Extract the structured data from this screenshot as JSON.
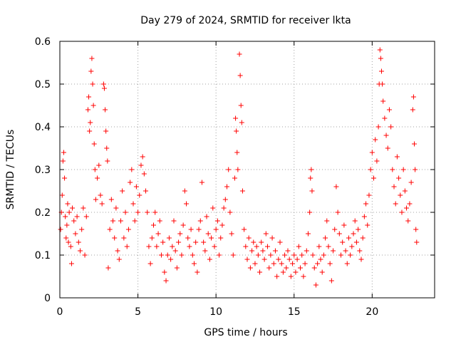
{
  "chart_data": {
    "type": "scatter",
    "title": "Day 279 of 2024, SRMTID for receiver lkta",
    "xlabel": "GPS time / hours",
    "ylabel": "SRMTID / TECUs",
    "xlim": [
      0,
      24
    ],
    "ylim": [
      0,
      0.6
    ],
    "xticks": [
      0,
      5,
      10,
      15,
      20
    ],
    "xtick_labels": [
      "0",
      "5",
      "10",
      "15",
      "20"
    ],
    "yticks": [
      0,
      0.1,
      0.2,
      0.3,
      0.4,
      0.5,
      0.6
    ],
    "ytick_labels": [
      "0",
      "0.1",
      "0.2",
      "0.3",
      "0.4",
      "0.5",
      "0.6"
    ],
    "grid": true,
    "marker": "+",
    "color": "#ff0000",
    "series": [
      {
        "name": "SRMTID",
        "points": [
          [
            0.05,
            0.16
          ],
          [
            0.1,
            0.2
          ],
          [
            0.15,
            0.24
          ],
          [
            0.2,
            0.32
          ],
          [
            0.25,
            0.34
          ],
          [
            0.3,
            0.28
          ],
          [
            0.35,
            0.19
          ],
          [
            0.4,
            0.14
          ],
          [
            0.45,
            0.17
          ],
          [
            0.5,
            0.22
          ],
          [
            0.55,
            0.13
          ],
          [
            0.6,
            0.2
          ],
          [
            0.7,
            0.12
          ],
          [
            0.75,
            0.08
          ],
          [
            0.8,
            0.21
          ],
          [
            0.9,
            0.18
          ],
          [
            1.0,
            0.15
          ],
          [
            1.1,
            0.19
          ],
          [
            1.2,
            0.13
          ],
          [
            1.3,
            0.11
          ],
          [
            1.4,
            0.16
          ],
          [
            1.5,
            0.21
          ],
          [
            1.6,
            0.1
          ],
          [
            1.7,
            0.19
          ],
          [
            1.8,
            0.44
          ],
          [
            1.85,
            0.47
          ],
          [
            1.9,
            0.39
          ],
          [
            1.95,
            0.41
          ],
          [
            2.0,
            0.53
          ],
          [
            2.05,
            0.56
          ],
          [
            2.1,
            0.5
          ],
          [
            2.15,
            0.45
          ],
          [
            2.2,
            0.36
          ],
          [
            2.25,
            0.3
          ],
          [
            2.3,
            0.23
          ],
          [
            2.4,
            0.28
          ],
          [
            2.5,
            0.31
          ],
          [
            2.6,
            0.24
          ],
          [
            2.7,
            0.22
          ],
          [
            2.8,
            0.5
          ],
          [
            2.85,
            0.49
          ],
          [
            2.9,
            0.44
          ],
          [
            2.95,
            0.39
          ],
          [
            3.0,
            0.35
          ],
          [
            3.05,
            0.32
          ],
          [
            3.1,
            0.07
          ],
          [
            3.2,
            0.16
          ],
          [
            3.3,
            0.23
          ],
          [
            3.4,
            0.18
          ],
          [
            3.5,
            0.14
          ],
          [
            3.6,
            0.21
          ],
          [
            3.7,
            0.11
          ],
          [
            3.8,
            0.09
          ],
          [
            3.9,
            0.18
          ],
          [
            4.0,
            0.25
          ],
          [
            4.1,
            0.14
          ],
          [
            4.2,
            0.2
          ],
          [
            4.3,
            0.12
          ],
          [
            4.4,
            0.16
          ],
          [
            4.5,
            0.27
          ],
          [
            4.6,
            0.3
          ],
          [
            4.7,
            0.22
          ],
          [
            4.8,
            0.18
          ],
          [
            4.9,
            0.26
          ],
          [
            5.0,
            0.2
          ],
          [
            5.1,
            0.24
          ],
          [
            5.2,
            0.31
          ],
          [
            5.3,
            0.33
          ],
          [
            5.4,
            0.29
          ],
          [
            5.5,
            0.25
          ],
          [
            5.6,
            0.2
          ],
          [
            5.7,
            0.12
          ],
          [
            5.8,
            0.08
          ],
          [
            5.9,
            0.14
          ],
          [
            6.0,
            0.17
          ],
          [
            6.1,
            0.2
          ],
          [
            6.2,
            0.12
          ],
          [
            6.3,
            0.15
          ],
          [
            6.4,
            0.18
          ],
          [
            6.5,
            0.1
          ],
          [
            6.6,
            0.13
          ],
          [
            6.7,
            0.06
          ],
          [
            6.8,
            0.04
          ],
          [
            6.9,
            0.1
          ],
          [
            7.0,
            0.14
          ],
          [
            7.1,
            0.09
          ],
          [
            7.2,
            0.12
          ],
          [
            7.3,
            0.18
          ],
          [
            7.4,
            0.11
          ],
          [
            7.5,
            0.07
          ],
          [
            7.6,
            0.13
          ],
          [
            7.7,
            0.15
          ],
          [
            7.8,
            0.1
          ],
          [
            7.9,
            0.17
          ],
          [
            8.0,
            0.25
          ],
          [
            8.1,
            0.22
          ],
          [
            8.2,
            0.14
          ],
          [
            8.3,
            0.12
          ],
          [
            8.4,
            0.16
          ],
          [
            8.5,
            0.1
          ],
          [
            8.6,
            0.08
          ],
          [
            8.7,
            0.13
          ],
          [
            8.8,
            0.06
          ],
          [
            8.9,
            0.16
          ],
          [
            9.0,
            0.18
          ],
          [
            9.1,
            0.27
          ],
          [
            9.2,
            0.13
          ],
          [
            9.3,
            0.11
          ],
          [
            9.4,
            0.19
          ],
          [
            9.5,
            0.15
          ],
          [
            9.6,
            0.09
          ],
          [
            9.7,
            0.14
          ],
          [
            9.8,
            0.21
          ],
          [
            9.9,
            0.12
          ],
          [
            10.0,
            0.16
          ],
          [
            10.1,
            0.18
          ],
          [
            10.2,
            0.1
          ],
          [
            10.3,
            0.14
          ],
          [
            10.4,
            0.17
          ],
          [
            10.5,
            0.21
          ],
          [
            10.6,
            0.23
          ],
          [
            10.7,
            0.26
          ],
          [
            10.8,
            0.3
          ],
          [
            10.9,
            0.2
          ],
          [
            11.0,
            0.15
          ],
          [
            11.1,
            0.1
          ],
          [
            11.2,
            0.28
          ],
          [
            11.25,
            0.42
          ],
          [
            11.3,
            0.39
          ],
          [
            11.35,
            0.34
          ],
          [
            11.4,
            0.3
          ],
          [
            11.5,
            0.57
          ],
          [
            11.55,
            0.52
          ],
          [
            11.6,
            0.45
          ],
          [
            11.65,
            0.41
          ],
          [
            11.7,
            0.25
          ],
          [
            11.8,
            0.16
          ],
          [
            11.9,
            0.12
          ],
          [
            12.0,
            0.09
          ],
          [
            12.1,
            0.14
          ],
          [
            12.2,
            0.07
          ],
          [
            12.3,
            0.11
          ],
          [
            12.4,
            0.13
          ],
          [
            12.5,
            0.08
          ],
          [
            12.6,
            0.12
          ],
          [
            12.7,
            0.1
          ],
          [
            12.8,
            0.06
          ],
          [
            12.9,
            0.13
          ],
          [
            13.0,
            0.11
          ],
          [
            13.1,
            0.09
          ],
          [
            13.2,
            0.15
          ],
          [
            13.3,
            0.12
          ],
          [
            13.4,
            0.07
          ],
          [
            13.5,
            0.1
          ],
          [
            13.6,
            0.14
          ],
          [
            13.7,
            0.08
          ],
          [
            13.8,
            0.11
          ],
          [
            13.9,
            0.05
          ],
          [
            14.0,
            0.09
          ],
          [
            14.1,
            0.13
          ],
          [
            14.2,
            0.08
          ],
          [
            14.3,
            0.06
          ],
          [
            14.4,
            0.1
          ],
          [
            14.5,
            0.07
          ],
          [
            14.6,
            0.11
          ],
          [
            14.7,
            0.09
          ],
          [
            14.8,
            0.05
          ],
          [
            14.9,
            0.08
          ],
          [
            15.0,
            0.1
          ],
          [
            15.1,
            0.06
          ],
          [
            15.2,
            0.09
          ],
          [
            15.3,
            0.12
          ],
          [
            15.4,
            0.07
          ],
          [
            15.5,
            0.1
          ],
          [
            15.6,
            0.05
          ],
          [
            15.7,
            0.08
          ],
          [
            15.8,
            0.11
          ],
          [
            15.9,
            0.15
          ],
          [
            16.0,
            0.2
          ],
          [
            16.05,
            0.28
          ],
          [
            16.1,
            0.3
          ],
          [
            16.15,
            0.25
          ],
          [
            16.2,
            0.1
          ],
          [
            16.3,
            0.07
          ],
          [
            16.4,
            0.03
          ],
          [
            16.5,
            0.08
          ],
          [
            16.6,
            0.12
          ],
          [
            16.7,
            0.09
          ],
          [
            16.8,
            0.06
          ],
          [
            16.9,
            0.1
          ],
          [
            17.0,
            0.14
          ],
          [
            17.1,
            0.18
          ],
          [
            17.2,
            0.12
          ],
          [
            17.3,
            0.08
          ],
          [
            17.4,
            0.04
          ],
          [
            17.5,
            0.11
          ],
          [
            17.6,
            0.16
          ],
          [
            17.7,
            0.26
          ],
          [
            17.8,
            0.2
          ],
          [
            17.9,
            0.15
          ],
          [
            18.0,
            0.1
          ],
          [
            18.1,
            0.13
          ],
          [
            18.2,
            0.17
          ],
          [
            18.3,
            0.11
          ],
          [
            18.4,
            0.08
          ],
          [
            18.5,
            0.14
          ],
          [
            18.6,
            0.1
          ],
          [
            18.7,
            0.12
          ],
          [
            18.8,
            0.15
          ],
          [
            18.9,
            0.18
          ],
          [
            19.0,
            0.13
          ],
          [
            19.1,
            0.16
          ],
          [
            19.2,
            0.11
          ],
          [
            19.3,
            0.09
          ],
          [
            19.4,
            0.14
          ],
          [
            19.5,
            0.19
          ],
          [
            19.6,
            0.22
          ],
          [
            19.7,
            0.17
          ],
          [
            19.8,
            0.24
          ],
          [
            19.9,
            0.3
          ],
          [
            20.0,
            0.34
          ],
          [
            20.1,
            0.28
          ],
          [
            20.2,
            0.37
          ],
          [
            20.3,
            0.32
          ],
          [
            20.4,
            0.4
          ],
          [
            20.45,
            0.5
          ],
          [
            20.5,
            0.58
          ],
          [
            20.55,
            0.56
          ],
          [
            20.6,
            0.53
          ],
          [
            20.65,
            0.5
          ],
          [
            20.7,
            0.46
          ],
          [
            20.8,
            0.42
          ],
          [
            20.9,
            0.38
          ],
          [
            21.0,
            0.35
          ],
          [
            21.1,
            0.44
          ],
          [
            21.2,
            0.4
          ],
          [
            21.3,
            0.3
          ],
          [
            21.4,
            0.26
          ],
          [
            21.5,
            0.22
          ],
          [
            21.6,
            0.33
          ],
          [
            21.7,
            0.28
          ],
          [
            21.8,
            0.24
          ],
          [
            21.9,
            0.2
          ],
          [
            22.0,
            0.3
          ],
          [
            22.1,
            0.25
          ],
          [
            22.2,
            0.21
          ],
          [
            22.3,
            0.18
          ],
          [
            22.4,
            0.22
          ],
          [
            22.5,
            0.27
          ],
          [
            22.6,
            0.44
          ],
          [
            22.65,
            0.47
          ],
          [
            22.7,
            0.36
          ],
          [
            22.75,
            0.3
          ],
          [
            22.8,
            0.16
          ],
          [
            22.85,
            0.13
          ]
        ]
      }
    ]
  }
}
